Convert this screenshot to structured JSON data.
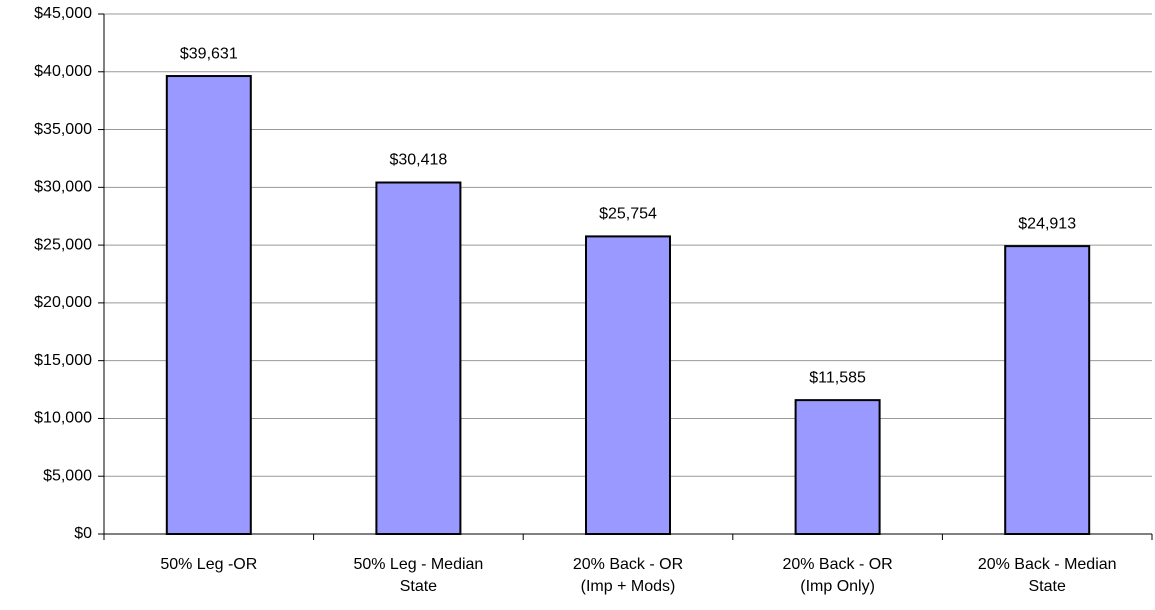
{
  "chart_data": {
    "type": "bar",
    "categories": [
      "50% Leg -OR",
      "50% Leg - Median\nState",
      "20% Back - OR\n(Imp + Mods)",
      "20% Back - OR\n(Imp Only)",
      "20% Back - Median\nState"
    ],
    "values": [
      39631,
      30418,
      25754,
      11585,
      24913
    ],
    "value_labels": [
      "$39,631",
      "$30,418",
      "$25,754",
      "$11,585",
      "$24,913"
    ],
    "color": "#9999ff",
    "ylim": [
      0,
      45000
    ],
    "yticks": [
      {
        "value": 0,
        "label": "$0"
      },
      {
        "value": 5000,
        "label": "$5,000"
      },
      {
        "value": 10000,
        "label": "$10,000"
      },
      {
        "value": 15000,
        "label": "$15,000"
      },
      {
        "value": 20000,
        "label": "$20,000"
      },
      {
        "value": 25000,
        "label": "$25,000"
      },
      {
        "value": 30000,
        "label": "$30,000"
      },
      {
        "value": 35000,
        "label": "$35,000"
      },
      {
        "value": 40000,
        "label": "$40,000"
      },
      {
        "value": 45000,
        "label": "$45,000"
      }
    ],
    "grid": true
  }
}
